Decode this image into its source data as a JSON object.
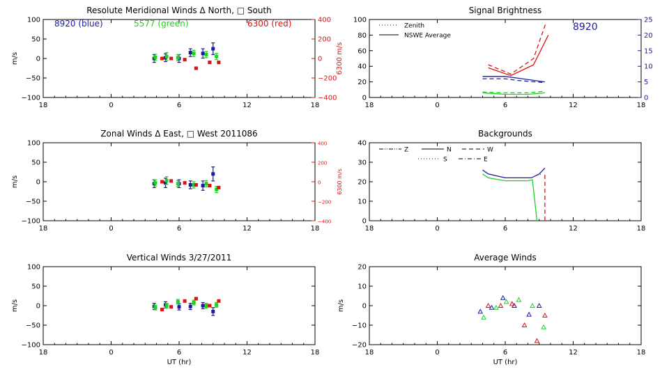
{
  "colors": {
    "blue": "#1a1aa6",
    "green": "#20d020",
    "red": "#e01010",
    "axis": "#000000"
  },
  "xticks": [
    "18",
    "0",
    "6",
    "12",
    "18"
  ],
  "xlabel": "UT (hr)",
  "chart_data": [
    {
      "id": "meridional",
      "type": "scatter",
      "title": "Resolute Meridional Winds Δ North, □ South",
      "ylabel": "m/s",
      "ylim": [
        -100,
        100
      ],
      "yticks": [
        "100",
        "50",
        "0",
        "−50",
        "−100"
      ],
      "right_axis": {
        "label": "6300 m/s",
        "ylim": [
          -400,
          400
        ],
        "ticks": [
          "400",
          "200",
          "0",
          "−200",
          "−400"
        ],
        "color": "red"
      },
      "annotations": [
        {
          "text": "8920 (blue)",
          "color": "blue"
        },
        {
          "text": "5577 (green)",
          "color": "green"
        },
        {
          "text": "6300 (red)",
          "color": "red"
        }
      ],
      "series": [
        {
          "name": "8920",
          "color": "blue",
          "points": [
            {
              "x": 3.8,
              "y": 0,
              "err": 10
            },
            {
              "x": 4.8,
              "y": 2,
              "err": 10
            },
            {
              "x": 6,
              "y": 0,
              "err": 10
            },
            {
              "x": 7,
              "y": 15,
              "err": 10
            },
            {
              "x": 8.1,
              "y": 13,
              "err": 12
            },
            {
              "x": 9,
              "y": 25,
              "err": 15
            }
          ]
        },
        {
          "name": "5577",
          "color": "green",
          "points": [
            {
              "x": 3.9,
              "y": 3,
              "err": 8
            },
            {
              "x": 4.9,
              "y": 5,
              "err": 10
            },
            {
              "x": 5.9,
              "y": 2,
              "err": 8
            },
            {
              "x": 7.3,
              "y": 13,
              "err": 8
            },
            {
              "x": 8.4,
              "y": 10,
              "err": 8
            },
            {
              "x": 9.3,
              "y": 5,
              "err": 8
            }
          ]
        },
        {
          "name": "6300",
          "color": "red",
          "points": [
            {
              "x": 4.5,
              "y": 0,
              "err": 3
            },
            {
              "x": 5.3,
              "y": 0,
              "err": 3
            },
            {
              "x": 6.5,
              "y": -3,
              "err": 3
            },
            {
              "x": 7.5,
              "y": -25,
              "err": 3
            },
            {
              "x": 8.7,
              "y": -10,
              "err": 3
            },
            {
              "x": 9.5,
              "y": -10,
              "err": 3
            }
          ]
        }
      ]
    },
    {
      "id": "zonal",
      "type": "scatter",
      "title": "Zonal Winds Δ East, □ West 2011086",
      "ylabel": "m/s",
      "ylim": [
        -100,
        100
      ],
      "yticks": [
        "100",
        "50",
        "0",
        "−50",
        "−100"
      ],
      "right_axis": {
        "label": "6300 m/s",
        "ylim": [
          -400,
          400
        ],
        "ticks": [
          "400",
          "200",
          "0",
          "−200",
          "−400"
        ],
        "color": "red"
      },
      "series": [
        {
          "name": "8920",
          "color": "blue",
          "points": [
            {
              "x": 3.8,
              "y": -5,
              "err": 10
            },
            {
              "x": 4.8,
              "y": -3,
              "err": 12
            },
            {
              "x": 6,
              "y": -5,
              "err": 10
            },
            {
              "x": 7,
              "y": -8,
              "err": 10
            },
            {
              "x": 8.1,
              "y": -10,
              "err": 12
            },
            {
              "x": 9,
              "y": 20,
              "err": 18
            }
          ]
        },
        {
          "name": "5577",
          "color": "green",
          "points": [
            {
              "x": 3.9,
              "y": -3,
              "err": 8
            },
            {
              "x": 4.9,
              "y": 3,
              "err": 10
            },
            {
              "x": 5.9,
              "y": -5,
              "err": 8
            },
            {
              "x": 7.3,
              "y": -8,
              "err": 8
            },
            {
              "x": 8.4,
              "y": -5,
              "err": 8
            },
            {
              "x": 9.3,
              "y": -20,
              "err": 8
            }
          ]
        },
        {
          "name": "6300",
          "color": "red",
          "points": [
            {
              "x": 4.5,
              "y": 0,
              "err": 3
            },
            {
              "x": 5.3,
              "y": 2,
              "err": 3
            },
            {
              "x": 6.5,
              "y": -3,
              "err": 3
            },
            {
              "x": 7.5,
              "y": -8,
              "err": 3
            },
            {
              "x": 8.7,
              "y": -10,
              "err": 3
            },
            {
              "x": 9.5,
              "y": -15,
              "err": 3
            }
          ]
        }
      ]
    },
    {
      "id": "vertical",
      "type": "scatter",
      "title": "Vertical Winds 3/27/2011",
      "ylabel": "m/s",
      "ylim": [
        -100,
        100
      ],
      "yticks": [
        "100",
        "50",
        "0",
        "−50",
        "−100"
      ],
      "series": [
        {
          "name": "8920",
          "color": "blue",
          "points": [
            {
              "x": 3.8,
              "y": -2,
              "err": 8
            },
            {
              "x": 4.8,
              "y": 2,
              "err": 8
            },
            {
              "x": 6,
              "y": -3,
              "err": 8
            },
            {
              "x": 7,
              "y": -2,
              "err": 8
            },
            {
              "x": 8.1,
              "y": 0,
              "err": 8
            },
            {
              "x": 9,
              "y": -15,
              "err": 10
            }
          ]
        },
        {
          "name": "5577",
          "color": "green",
          "points": [
            {
              "x": 3.9,
              "y": -5,
              "err": 6
            },
            {
              "x": 4.9,
              "y": 0,
              "err": 6
            },
            {
              "x": 5.9,
              "y": 10,
              "err": 6
            },
            {
              "x": 7.3,
              "y": 8,
              "err": 6
            },
            {
              "x": 8.4,
              "y": 0,
              "err": 6
            },
            {
              "x": 9.3,
              "y": 2,
              "err": 6
            }
          ]
        },
        {
          "name": "6300",
          "color": "red",
          "points": [
            {
              "x": 4.5,
              "y": -10,
              "err": 3
            },
            {
              "x": 5.3,
              "y": -3,
              "err": 3
            },
            {
              "x": 6.5,
              "y": 12,
              "err": 3
            },
            {
              "x": 7.5,
              "y": 18,
              "err": 3
            },
            {
              "x": 8.7,
              "y": 0,
              "err": 3
            },
            {
              "x": 9.5,
              "y": 12,
              "err": 3
            }
          ]
        }
      ]
    },
    {
      "id": "brightness",
      "type": "line",
      "title": "Signal Brightness",
      "ylabel": "",
      "ylim": [
        0,
        100
      ],
      "yticks": [
        "100",
        "80",
        "60",
        "40",
        "20",
        "0"
      ],
      "right_axis": {
        "label": "",
        "ylim": [
          0,
          25
        ],
        "ticks": [
          "25",
          "20",
          "15",
          "10",
          "5",
          "0"
        ],
        "color": "blue"
      },
      "legend": [
        {
          "label": "Zenith",
          "style": "dotted"
        },
        {
          "label": "NSWE Average",
          "style": "solid"
        }
      ],
      "annotation": "8920",
      "series": [
        {
          "name": "6300 NSWE Average",
          "color": "red",
          "style": "solid",
          "points": [
            [
              4.5,
              38
            ],
            [
              6.5,
              28
            ],
            [
              8.5,
              42
            ],
            [
              9.8,
              80
            ]
          ]
        },
        {
          "name": "6300 dashed",
          "color": "red",
          "style": "dashed",
          "points": [
            [
              4.5,
              42
            ],
            [
              6.5,
              30
            ],
            [
              8.5,
              50
            ],
            [
              9.6,
              96
            ]
          ]
        },
        {
          "name": "8920 NSWE Average",
          "color": "blue",
          "style": "solid",
          "points": [
            [
              4,
              27
            ],
            [
              6,
              27
            ],
            [
              7,
              25
            ],
            [
              9.5,
              20
            ]
          ]
        },
        {
          "name": "8920 dashed",
          "color": "blue",
          "style": "dashed",
          "points": [
            [
              4,
              24
            ],
            [
              6,
              24
            ],
            [
              7,
              22
            ],
            [
              9.5,
              19
            ]
          ]
        },
        {
          "name": "5577 NSWE Average",
          "color": "green",
          "style": "solid",
          "points": [
            [
              4,
              6
            ],
            [
              6,
              4
            ],
            [
              8,
              4
            ],
            [
              9.5,
              6
            ]
          ]
        },
        {
          "name": "5577 dashed",
          "color": "green",
          "style": "dashed",
          "points": [
            [
              4,
              7
            ],
            [
              6,
              6
            ],
            [
              8,
              6
            ],
            [
              9.5,
              8
            ]
          ]
        }
      ]
    },
    {
      "id": "backgrounds",
      "type": "line",
      "title": "Backgrounds",
      "ylabel": "",
      "ylim": [
        0,
        40
      ],
      "yticks": [
        "40",
        "30",
        "20",
        "10",
        "0"
      ],
      "legend": [
        {
          "label": "Z",
          "style": "dashdotdot"
        },
        {
          "label": "N",
          "style": "solid"
        },
        {
          "label": "W",
          "style": "dashed"
        },
        {
          "label": "S",
          "style": "dotted"
        },
        {
          "label": "E",
          "style": "dashdot"
        }
      ],
      "series": [
        {
          "name": "8920",
          "color": "blue",
          "style": "solid",
          "points": [
            [
              4,
              26
            ],
            [
              4.5,
              24
            ],
            [
              6,
              22
            ],
            [
              7,
              22
            ],
            [
              8.3,
              22
            ],
            [
              9,
              24
            ],
            [
              9.5,
              27
            ]
          ]
        },
        {
          "name": "5577",
          "color": "green",
          "style": "solid",
          "points": [
            [
              4,
              24
            ],
            [
              4.5,
              22
            ],
            [
              6,
              20.5
            ],
            [
              7,
              20.5
            ],
            [
              8,
              20.5
            ],
            [
              8.4,
              21
            ],
            [
              8.8,
              0
            ]
          ]
        },
        {
          "name": "6300",
          "color": "red",
          "style": "dashed",
          "points": [
            [
              9.5,
              0
            ],
            [
              9.5,
              25
            ]
          ]
        },
        {
          "name": "6300 S",
          "color": "red",
          "style": "dotted",
          "points": [
            [
              8.6,
              23
            ],
            [
              9.3,
              24
            ]
          ]
        }
      ]
    },
    {
      "id": "average",
      "type": "scatter",
      "title": "Average Winds",
      "ylabel": "m/s",
      "ylim": [
        -20,
        20
      ],
      "yticks": [
        "20",
        "10",
        "0",
        "−10",
        "−20"
      ],
      "series": [
        {
          "name": "8920",
          "color": "blue",
          "points": [
            [
              3.8,
              -3
            ],
            [
              4.8,
              -1
            ],
            [
              5.8,
              4
            ],
            [
              6.8,
              0
            ],
            [
              8.1,
              -4.5
            ],
            [
              9,
              0
            ]
          ]
        },
        {
          "name": "5577",
          "color": "green",
          "points": [
            [
              4.1,
              -6
            ],
            [
              5.2,
              -1
            ],
            [
              6.1,
              2
            ],
            [
              7.2,
              3
            ],
            [
              8.4,
              0
            ],
            [
              9.4,
              -11
            ]
          ]
        },
        {
          "name": "6300",
          "color": "red",
          "points": [
            [
              4.5,
              0
            ],
            [
              5.6,
              0
            ],
            [
              6.6,
              1
            ],
            [
              7.7,
              -10
            ],
            [
              8.8,
              -18
            ],
            [
              9.5,
              -5
            ]
          ]
        }
      ]
    }
  ]
}
